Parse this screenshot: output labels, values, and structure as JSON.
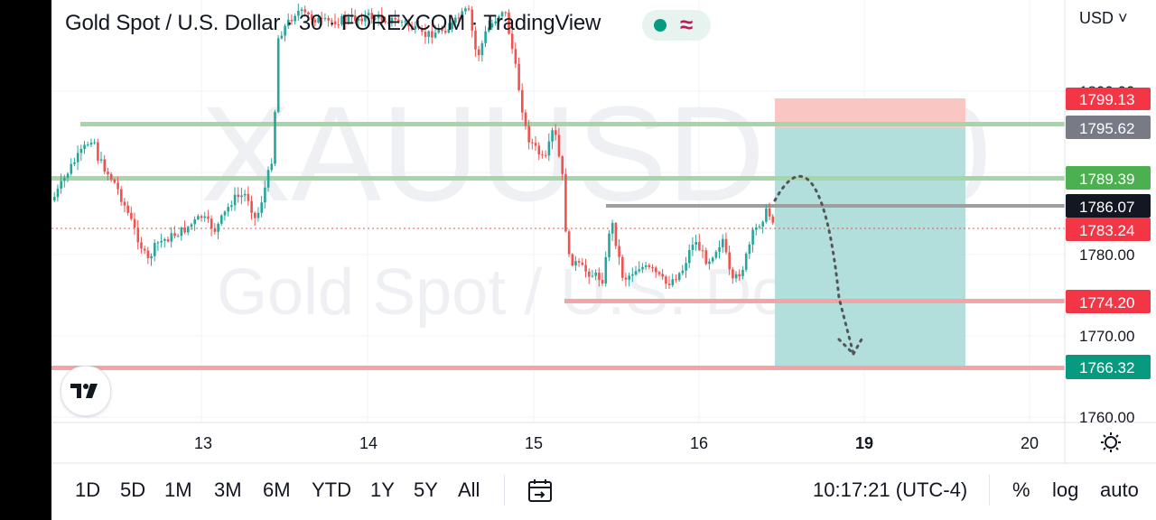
{
  "header": {
    "title": "Gold Spot / U.S. Dollar · 30 · FOREXCOM · TradingView",
    "status_wave": "≈",
    "currency": "USD ˅"
  },
  "watermark": {
    "symbol": "XAUUSD, 30",
    "name": "Gold Spot / U.S. Dollar"
  },
  "colors": {
    "green_level": "#8fcf8f",
    "red_level": "#f0989c",
    "gray_level": "#9e9e9e",
    "target_zone": "#b2dfdb",
    "stop_zone": "#f9c6c4",
    "up_candle": "#26a69a",
    "down_candle": "#ef5350"
  },
  "price_axis": {
    "tick_labels": [
      "1800.00",
      "1780.00",
      "1770.00",
      "1760.00"
    ]
  },
  "time_axis": {
    "labels": [
      "13",
      "14",
      "15",
      "16",
      "19",
      "20"
    ],
    "bold_label": "19"
  },
  "price_tags": [
    {
      "text": "1799.13",
      "kind": "stop",
      "color": "#f23645"
    },
    {
      "text": "1795.62",
      "kind": "level",
      "color": "#787b86"
    },
    {
      "text": "1789.39",
      "kind": "level",
      "color": "#4caf50"
    },
    {
      "text": "1786.07",
      "kind": "entry",
      "color": "#131722"
    },
    {
      "text": "1783.24",
      "kind": "last",
      "color": "#f23645"
    },
    {
      "text": "1774.20",
      "kind": "level",
      "color": "#f23645"
    },
    {
      "text": "1766.32",
      "kind": "target",
      "color": "#089981"
    }
  ],
  "toolbar": {
    "ranges": [
      "1D",
      "5D",
      "1M",
      "3M",
      "6M",
      "YTD",
      "1Y",
      "5Y",
      "All"
    ],
    "time": "10:17:21 (UTC-4)",
    "percent": "%",
    "log": "log",
    "auto": "auto"
  }
}
